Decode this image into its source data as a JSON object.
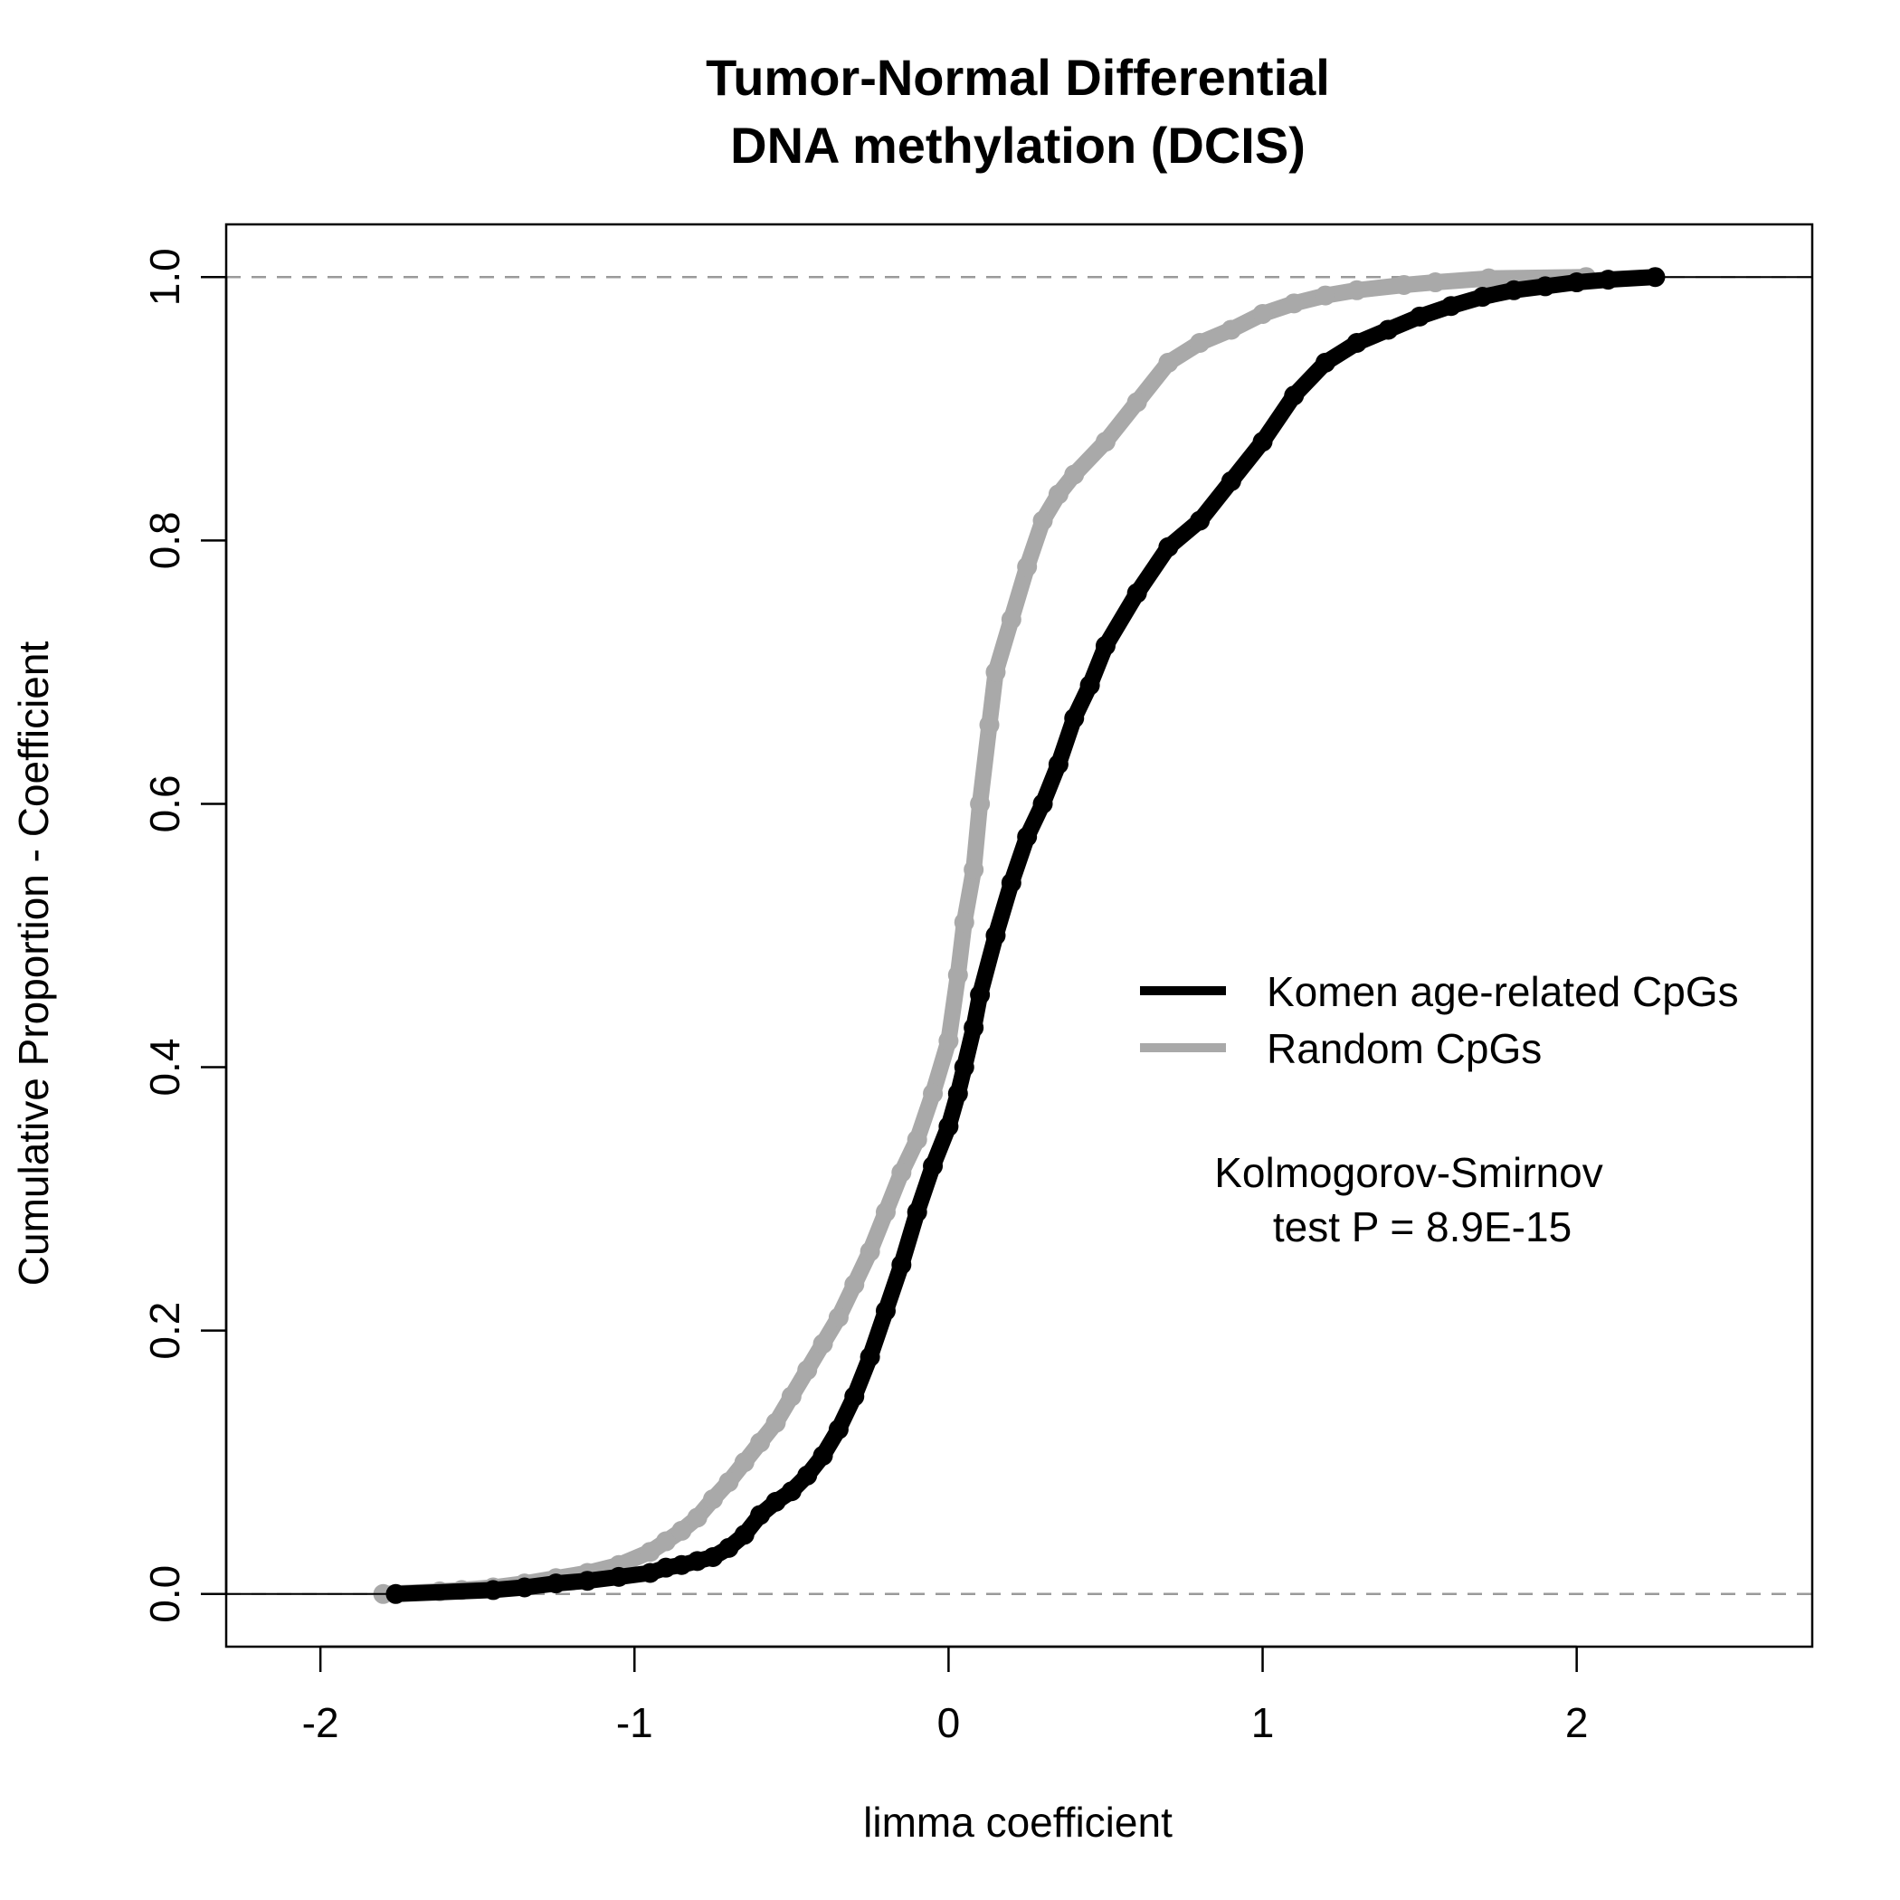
{
  "chart_data": {
    "type": "line",
    "title": [
      "Tumor-Normal Differential",
      "DNA methylation (DCIS)"
    ],
    "xlabel": "limma coefficient",
    "ylabel": "Cumulative Proportion - Coefficient",
    "xlim": [
      -2.3,
      2.75
    ],
    "ylim": [
      -0.04,
      1.04
    ],
    "x_ticks": [
      -2,
      -1,
      0,
      1,
      2
    ],
    "x_tick_labels": [
      "-2",
      "-1",
      "0",
      "1",
      "2"
    ],
    "y_ticks": [
      0.0,
      0.2,
      0.4,
      0.6,
      0.8,
      1.0
    ],
    "y_tick_labels": [
      "0.0",
      "0.2",
      "0.4",
      "0.6",
      "0.8",
      "1.0"
    ],
    "reference_lines": [
      0,
      1
    ],
    "grid": false,
    "legend_position": "right",
    "series": [
      {
        "name": "Komen age-related CpGs",
        "color": "#000000",
        "x": [
          -1.76,
          -1.45,
          -1.35,
          -1.25,
          -1.15,
          -1.05,
          -0.95,
          -0.9,
          -0.85,
          -0.8,
          -0.75,
          -0.7,
          -0.65,
          -0.6,
          -0.55,
          -0.5,
          -0.45,
          -0.4,
          -0.35,
          -0.3,
          -0.25,
          -0.2,
          -0.15,
          -0.1,
          -0.05,
          0.0,
          0.03,
          0.05,
          0.08,
          0.1,
          0.15,
          0.2,
          0.25,
          0.3,
          0.35,
          0.4,
          0.45,
          0.5,
          0.6,
          0.7,
          0.8,
          0.9,
          1.0,
          1.1,
          1.2,
          1.3,
          1.4,
          1.5,
          1.6,
          1.7,
          1.8,
          1.9,
          2.0,
          2.1,
          2.25
        ],
        "y": [
          0.0,
          0.003,
          0.005,
          0.008,
          0.01,
          0.013,
          0.016,
          0.02,
          0.022,
          0.025,
          0.028,
          0.035,
          0.045,
          0.06,
          0.07,
          0.078,
          0.09,
          0.105,
          0.125,
          0.15,
          0.18,
          0.215,
          0.25,
          0.29,
          0.325,
          0.355,
          0.38,
          0.4,
          0.43,
          0.455,
          0.5,
          0.54,
          0.575,
          0.6,
          0.63,
          0.665,
          0.69,
          0.72,
          0.76,
          0.795,
          0.815,
          0.845,
          0.875,
          0.91,
          0.935,
          0.95,
          0.96,
          0.97,
          0.978,
          0.985,
          0.99,
          0.993,
          0.996,
          0.998,
          1.0
        ]
      },
      {
        "name": "Random CpGs",
        "color": "#a9a9a9",
        "x": [
          -1.8,
          -1.62,
          -1.55,
          -1.45,
          -1.35,
          -1.25,
          -1.15,
          -1.05,
          -0.95,
          -0.9,
          -0.85,
          -0.8,
          -0.75,
          -0.7,
          -0.65,
          -0.6,
          -0.55,
          -0.5,
          -0.45,
          -0.4,
          -0.35,
          -0.3,
          -0.25,
          -0.2,
          -0.15,
          -0.1,
          -0.05,
          0.0,
          0.03,
          0.05,
          0.08,
          0.1,
          0.13,
          0.15,
          0.2,
          0.25,
          0.3,
          0.35,
          0.4,
          0.5,
          0.6,
          0.7,
          0.8,
          0.9,
          1.0,
          1.1,
          1.2,
          1.3,
          1.45,
          1.55,
          1.72,
          2.03
        ],
        "y": [
          0.0,
          0.002,
          0.003,
          0.005,
          0.008,
          0.012,
          0.016,
          0.022,
          0.032,
          0.04,
          0.048,
          0.058,
          0.072,
          0.085,
          0.1,
          0.115,
          0.13,
          0.15,
          0.17,
          0.19,
          0.21,
          0.235,
          0.26,
          0.29,
          0.32,
          0.345,
          0.38,
          0.42,
          0.47,
          0.51,
          0.55,
          0.6,
          0.66,
          0.7,
          0.74,
          0.78,
          0.815,
          0.835,
          0.85,
          0.875,
          0.905,
          0.935,
          0.95,
          0.96,
          0.972,
          0.98,
          0.986,
          0.99,
          0.994,
          0.996,
          0.999,
          1.0
        ]
      }
    ],
    "annotation": [
      "Kolmogorov-Smirnov",
      "test P = 8.9E-15"
    ]
  }
}
